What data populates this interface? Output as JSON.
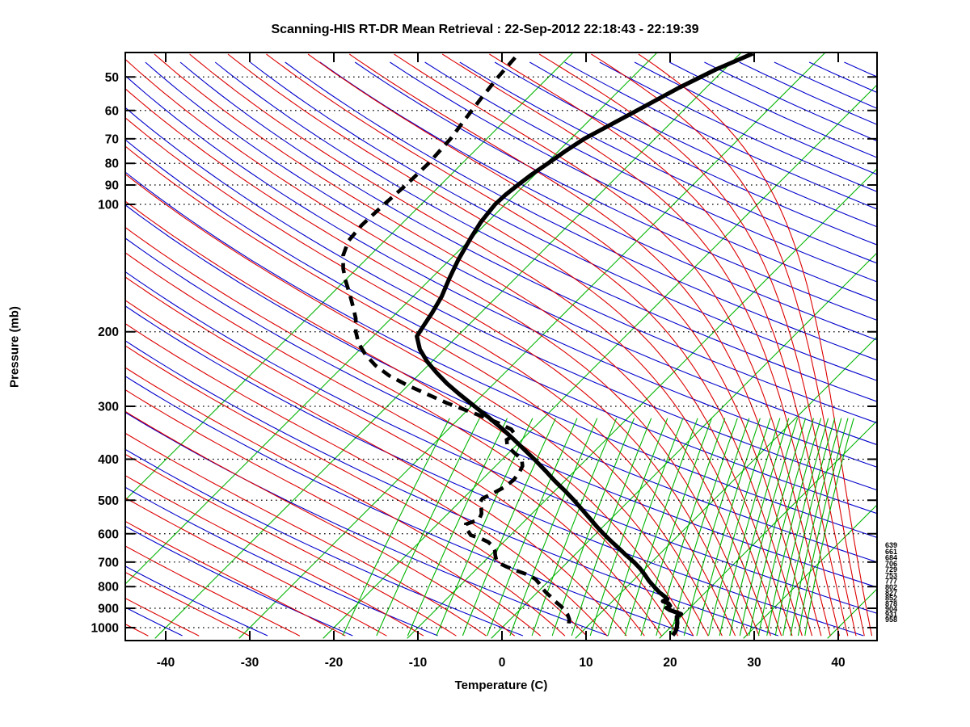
{
  "title": "Scanning-HIS RT-DR Mean Retrieval : 22-Sep-2012 22:18:43 - 22:19:39",
  "axes": {
    "x": {
      "label": "Temperature (C)",
      "ticks": [
        -40,
        -30,
        -20,
        -10,
        0,
        10,
        20,
        30,
        40
      ]
    },
    "y": {
      "label": "Pressure (mb)",
      "ticks": [
        50,
        60,
        70,
        80,
        90,
        100,
        200,
        300,
        400,
        500,
        600,
        700,
        800,
        900,
        1000
      ]
    }
  },
  "right_pressure_labels": [
    639,
    661,
    684,
    706,
    729,
    753,
    777,
    802,
    827,
    852,
    878,
    904,
    931,
    958
  ],
  "colors": {
    "isotherm": "#00b400",
    "mixing_ratio": "#00b400",
    "dry_adiabat": "#0000cc",
    "moist_adiabat": "#dd0000",
    "gridline": "#000000",
    "frame": "#000000",
    "temperature_curve": "#000000",
    "dew_point_curve": "#000000",
    "background": "#ffffff"
  },
  "chart_data": {
    "type": "skewt_log_p_sounding",
    "title": "Scanning-HIS RT-DR Mean Retrieval : 22-Sep-2012 22:18:43 - 22:19:39",
    "xlabel": "Temperature (C)",
    "ylabel": "Pressure (mb)",
    "x_range_c": [
      -45,
      45
    ],
    "pressure_range_mb": [
      44,
      1045
    ],
    "grid": "horizontal dotted lines at labeled pressure levels",
    "profiles": {
      "temperature_c_by_mb": [
        [
          44,
          -38.5
        ],
        [
          48,
          -41.0
        ],
        [
          53,
          -43.2
        ],
        [
          60,
          -45.5
        ],
        [
          65,
          -47.0
        ],
        [
          70,
          -48.4
        ],
        [
          75,
          -49.2
        ],
        [
          80,
          -49.8
        ],
        [
          85,
          -50.4
        ],
        [
          90,
          -50.8
        ],
        [
          95,
          -51.1
        ],
        [
          100,
          -51.2
        ],
        [
          105,
          -51.0
        ],
        [
          110,
          -50.8
        ],
        [
          120,
          -50.1
        ],
        [
          135,
          -49.0
        ],
        [
          150,
          -47.8
        ],
        [
          165,
          -46.6
        ],
        [
          180,
          -45.8
        ],
        [
          195,
          -45.2
        ],
        [
          205,
          -44.8
        ],
        [
          220,
          -42.9
        ],
        [
          235,
          -40.6
        ],
        [
          250,
          -38.1
        ],
        [
          265,
          -35.6
        ],
        [
          280,
          -33.0
        ],
        [
          300,
          -29.6
        ],
        [
          320,
          -26.4
        ],
        [
          340,
          -23.5
        ],
        [
          360,
          -20.9
        ],
        [
          380,
          -18.5
        ],
        [
          400,
          -16.2
        ],
        [
          425,
          -13.6
        ],
        [
          450,
          -11.2
        ],
        [
          475,
          -8.8
        ],
        [
          500,
          -6.6
        ],
        [
          525,
          -4.6
        ],
        [
          550,
          -2.7
        ],
        [
          575,
          -0.9
        ],
        [
          600,
          0.9
        ],
        [
          625,
          2.7
        ],
        [
          650,
          4.5
        ],
        [
          675,
          6.2
        ],
        [
          700,
          7.9
        ],
        [
          725,
          9.4
        ],
        [
          750,
          10.7
        ],
        [
          775,
          11.9
        ],
        [
          800,
          13.2
        ],
        [
          825,
          14.5
        ],
        [
          845,
          15.7
        ],
        [
          857,
          16.3
        ],
        [
          866,
          16.0
        ],
        [
          876,
          16.9
        ],
        [
          888,
          17.4
        ],
        [
          898,
          17.2
        ],
        [
          908,
          17.8
        ],
        [
          920,
          18.9
        ],
        [
          929,
          19.7
        ],
        [
          943,
          19.5
        ],
        [
          958,
          19.9
        ],
        [
          975,
          20.3
        ],
        [
          1000,
          20.8
        ],
        [
          1020,
          21.1
        ],
        [
          1042,
          21.2
        ]
      ],
      "dew_point_c_by_mb": [
        [
          45,
          -66.3
        ],
        [
          50,
          -66.0
        ],
        [
          56,
          -65.5
        ],
        [
          63,
          -64.9
        ],
        [
          70,
          -64.3
        ],
        [
          80,
          -64.0
        ],
        [
          90,
          -64.1
        ],
        [
          100,
          -64.4
        ],
        [
          112,
          -64.6
        ],
        [
          122,
          -64.3
        ],
        [
          132,
          -63.2
        ],
        [
          142,
          -61.6
        ],
        [
          152,
          -59.8
        ],
        [
          163,
          -57.8
        ],
        [
          174,
          -56.0
        ],
        [
          186,
          -54.2
        ],
        [
          200,
          -52.6
        ],
        [
          213,
          -50.9
        ],
        [
          226,
          -48.8
        ],
        [
          240,
          -46.3
        ],
        [
          254,
          -43.4
        ],
        [
          268,
          -40.0
        ],
        [
          282,
          -36.4
        ],
        [
          295,
          -33.2
        ],
        [
          307,
          -30.0
        ],
        [
          318,
          -27.2
        ],
        [
          329,
          -24.7
        ],
        [
          340,
          -22.5
        ],
        [
          350,
          -21.4
        ],
        [
          360,
          -21.8
        ],
        [
          372,
          -21.0
        ],
        [
          385,
          -19.5
        ],
        [
          400,
          -17.7
        ],
        [
          415,
          -16.8
        ],
        [
          430,
          -16.4
        ],
        [
          448,
          -16.2
        ],
        [
          465,
          -16.4
        ],
        [
          480,
          -17.0
        ],
        [
          495,
          -17.7
        ],
        [
          508,
          -17.5
        ],
        [
          522,
          -16.7
        ],
        [
          538,
          -16.0
        ],
        [
          555,
          -15.6
        ],
        [
          570,
          -16.6
        ],
        [
          582,
          -16.2
        ],
        [
          595,
          -15.3
        ],
        [
          605,
          -14.7
        ],
        [
          615,
          -13.2
        ],
        [
          628,
          -11.8
        ],
        [
          642,
          -10.8
        ],
        [
          658,
          -10.0
        ],
        [
          675,
          -9.4
        ],
        [
          690,
          -8.8
        ],
        [
          702,
          -8.2
        ],
        [
          718,
          -6.7
        ],
        [
          735,
          -4.9
        ],
        [
          752,
          -3.0
        ],
        [
          768,
          -1.8
        ],
        [
          785,
          -0.9
        ],
        [
          805,
          0.0
        ],
        [
          825,
          1.0
        ],
        [
          845,
          2.1
        ],
        [
          865,
          3.1
        ],
        [
          885,
          4.2
        ],
        [
          905,
          5.2
        ],
        [
          930,
          6.2
        ],
        [
          955,
          7.0
        ],
        [
          980,
          7.5
        ],
        [
          1005,
          7.8
        ]
      ]
    },
    "background": {
      "isotherms_c": [
        -60,
        -50,
        -40,
        -30,
        -20,
        -10,
        0,
        10,
        20,
        30,
        40
      ],
      "dry_adiabats_theta_c": [
        -50,
        -40,
        -30,
        -20,
        -10,
        0,
        10,
        20,
        30,
        40,
        50,
        60,
        70,
        80,
        90,
        100,
        110,
        120,
        130,
        140,
        150,
        160,
        170,
        180,
        190,
        200,
        210,
        220,
        230,
        240,
        250,
        260,
        270,
        280,
        290,
        300,
        310,
        320,
        330,
        340
      ],
      "moist_adiabats_thetaw_c": [
        -44,
        -38,
        -32,
        -26,
        -20.5,
        -15.5,
        -11,
        -7,
        -3.3,
        0.2,
        3.4,
        6.4,
        9.1,
        11.6,
        14,
        16.2,
        18.3,
        20.3,
        22.2,
        24,
        25.7,
        27.3,
        28.8,
        30.2,
        31.6,
        32.9,
        34.2,
        35.4,
        36.6,
        37.7,
        38.8,
        39.9,
        40.9,
        41.9,
        42.9,
        43.8
      ],
      "mixing_ratio_dew_points_c": [
        -18.5,
        -14.5,
        -10.8,
        -7.4,
        -4.3,
        -1.4,
        1.3,
        3.9,
        6.3,
        8.6,
        10.8,
        12.9,
        14.9,
        16.8,
        18.6,
        20.3,
        21.9,
        23.4,
        24.8,
        26.1,
        27.3,
        28.5,
        29.6,
        30.7,
        31.7,
        32.7,
        33.6,
        34.5,
        35.4,
        36.2
      ],
      "mixing_ratio_top_mb": 300
    }
  }
}
